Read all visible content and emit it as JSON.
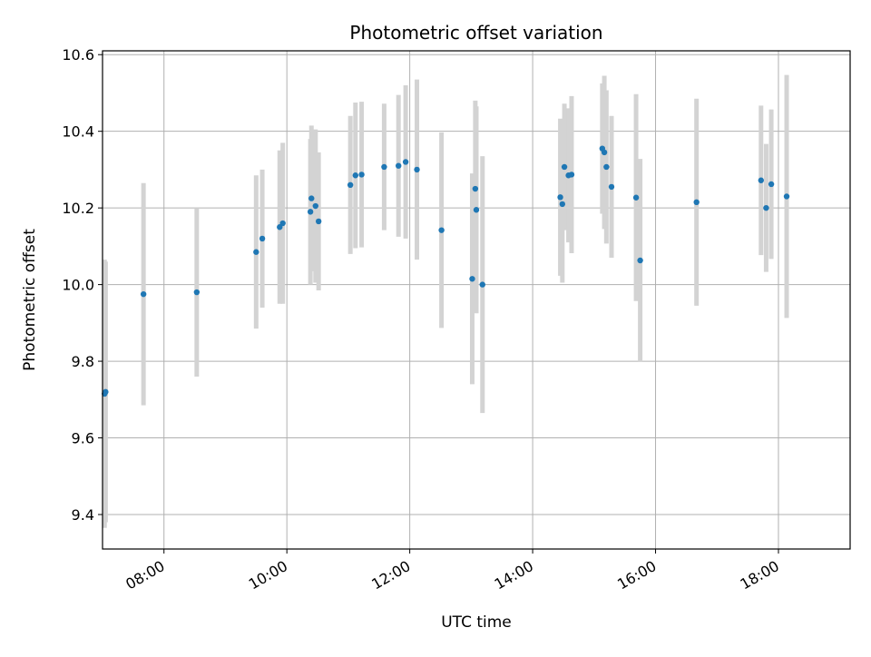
{
  "chart_data": {
    "type": "scatter",
    "title": "Photometric offset variation",
    "xlabel": "UTC time",
    "ylabel": "Photometric offset",
    "xlim": [
      "07:00",
      "19:10"
    ],
    "ylim": [
      9.31,
      10.61
    ],
    "x_ticks": [
      "08:00",
      "10:00",
      "12:00",
      "14:00",
      "16:00",
      "18:00"
    ],
    "y_ticks": [
      9.4,
      9.6,
      9.8,
      10.0,
      10.2,
      10.4,
      10.6
    ],
    "grid": true,
    "colors": {
      "point": "#1f77b4",
      "errorbar": "#d3d3d3",
      "grid": "#b0b0b0"
    },
    "series": [
      {
        "points": [
          {
            "t": "07:02",
            "y": 9.715,
            "err": 0.35
          },
          {
            "t": "07:03",
            "y": 9.72,
            "err": 0.34
          },
          {
            "t": "07:40",
            "y": 9.975,
            "err": 0.29
          },
          {
            "t": "08:32",
            "y": 9.98,
            "err": 0.22
          },
          {
            "t": "09:30",
            "y": 10.085,
            "err": 0.2
          },
          {
            "t": "09:36",
            "y": 10.12,
            "err": 0.18
          },
          {
            "t": "09:53",
            "y": 10.15,
            "err": 0.2
          },
          {
            "t": "09:56",
            "y": 10.16,
            "err": 0.21
          },
          {
            "t": "10:23",
            "y": 10.19,
            "err": 0.19
          },
          {
            "t": "10:24",
            "y": 10.225,
            "err": 0.19
          },
          {
            "t": "10:28",
            "y": 10.205,
            "err": 0.2
          },
          {
            "t": "10:31",
            "y": 10.165,
            "err": 0.18
          },
          {
            "t": "11:02",
            "y": 10.26,
            "err": 0.18
          },
          {
            "t": "11:07",
            "y": 10.285,
            "err": 0.19
          },
          {
            "t": "11:13",
            "y": 10.287,
            "err": 0.19
          },
          {
            "t": "11:35",
            "y": 10.307,
            "err": 0.165
          },
          {
            "t": "11:49",
            "y": 10.31,
            "err": 0.185
          },
          {
            "t": "11:56",
            "y": 10.32,
            "err": 0.2
          },
          {
            "t": "12:07",
            "y": 10.3,
            "err": 0.235
          },
          {
            "t": "12:31",
            "y": 10.142,
            "err": 0.255
          },
          {
            "t": "13:01",
            "y": 10.015,
            "err": 0.275
          },
          {
            "t": "13:04",
            "y": 10.25,
            "err": 0.23
          },
          {
            "t": "13:05",
            "y": 10.195,
            "err": 0.27
          },
          {
            "t": "13:11",
            "y": 10.0,
            "err": 0.335
          },
          {
            "t": "14:27",
            "y": 10.228,
            "err": 0.205
          },
          {
            "t": "14:29",
            "y": 10.21,
            "err": 0.205
          },
          {
            "t": "14:31",
            "y": 10.307,
            "err": 0.165
          },
          {
            "t": "14:35",
            "y": 10.285,
            "err": 0.175
          },
          {
            "t": "14:38",
            "y": 10.287,
            "err": 0.205
          },
          {
            "t": "15:08",
            "y": 10.355,
            "err": 0.17
          },
          {
            "t": "15:10",
            "y": 10.345,
            "err": 0.2
          },
          {
            "t": "15:12",
            "y": 10.307,
            "err": 0.2
          },
          {
            "t": "15:17",
            "y": 10.255,
            "err": 0.185
          },
          {
            "t": "15:41",
            "y": 10.227,
            "err": 0.27
          },
          {
            "t": "15:45",
            "y": 10.063,
            "err": 0.265
          },
          {
            "t": "16:40",
            "y": 10.215,
            "err": 0.27
          },
          {
            "t": "17:43",
            "y": 10.272,
            "err": 0.195
          },
          {
            "t": "17:48",
            "y": 10.2,
            "err": 0.167
          },
          {
            "t": "17:53",
            "y": 10.262,
            "err": 0.195
          },
          {
            "t": "18:08",
            "y": 10.23,
            "err": 0.317
          }
        ]
      }
    ]
  }
}
